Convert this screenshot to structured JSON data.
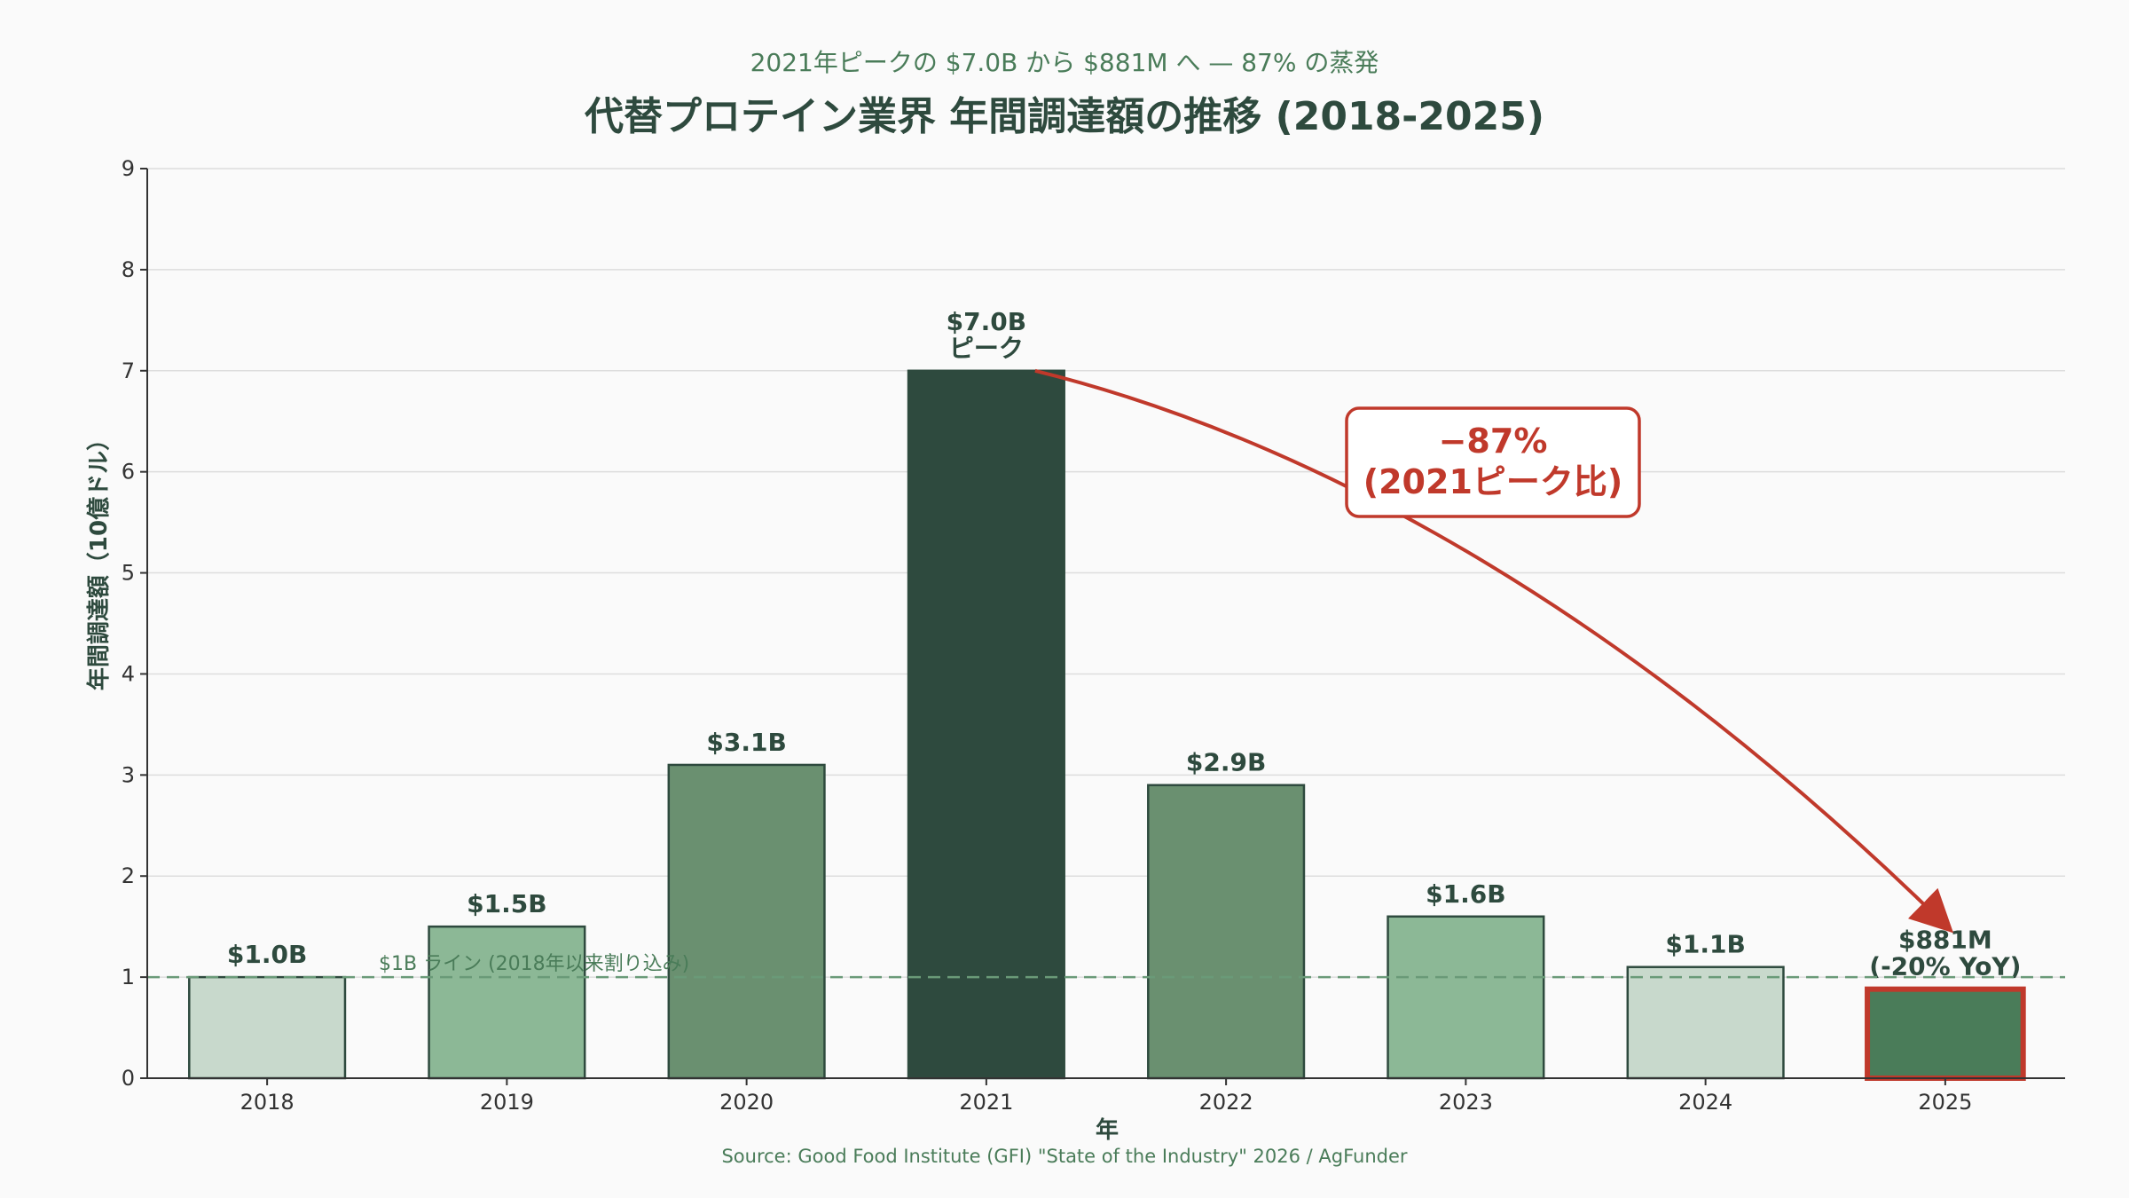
{
  "chart_data": {
    "type": "bar",
    "subtitle": "2021年ピークの $7.0B から $881M へ — 87% の蒸発",
    "title": "代替プロテイン業界 年間調達額の推移 (2018-2025)",
    "xlabel": "年",
    "ylabel": "年間調達額（10億ドル）",
    "ylim": [
      0,
      9
    ],
    "yticks": [
      "0",
      "1",
      "2",
      "3",
      "4",
      "5",
      "6",
      "7",
      "8",
      "9"
    ],
    "grid": true,
    "categories": [
      "2018",
      "2019",
      "2020",
      "2021",
      "2022",
      "2023",
      "2024",
      "2025"
    ],
    "values": [
      1.0,
      1.5,
      3.1,
      7.0,
      2.9,
      1.6,
      1.1,
      0.881
    ],
    "bar_labels": [
      [
        "$1.0B"
      ],
      [
        "$1.5B"
      ],
      [
        "$3.1B"
      ],
      [
        "$7.0B",
        "ピーク"
      ],
      [
        "$2.9B"
      ],
      [
        "$1.6B"
      ],
      [
        "$1.1B"
      ],
      [
        "$881M",
        "(-20% YoY)"
      ]
    ],
    "bar_colors": [
      "#c8d9cc",
      "#8cb896",
      "#6a9070",
      "#2e4a3e",
      "#6a9070",
      "#8cb896",
      "#c8d9cc",
      "#4a7c59"
    ],
    "highlight_index": 7,
    "highlight_color": "#c0392b",
    "reference_line": {
      "value": 1,
      "label": "$1B ライン (2018年以来割り込み)"
    },
    "annotation": {
      "lines": [
        "−87%",
        "(2021ピーク比)"
      ],
      "from_index": 3,
      "to_index": 7,
      "color": "#c0392b"
    },
    "source": "Source: Good Food Institute (GFI) \"State of the Industry\" 2026 / AgFunder"
  }
}
